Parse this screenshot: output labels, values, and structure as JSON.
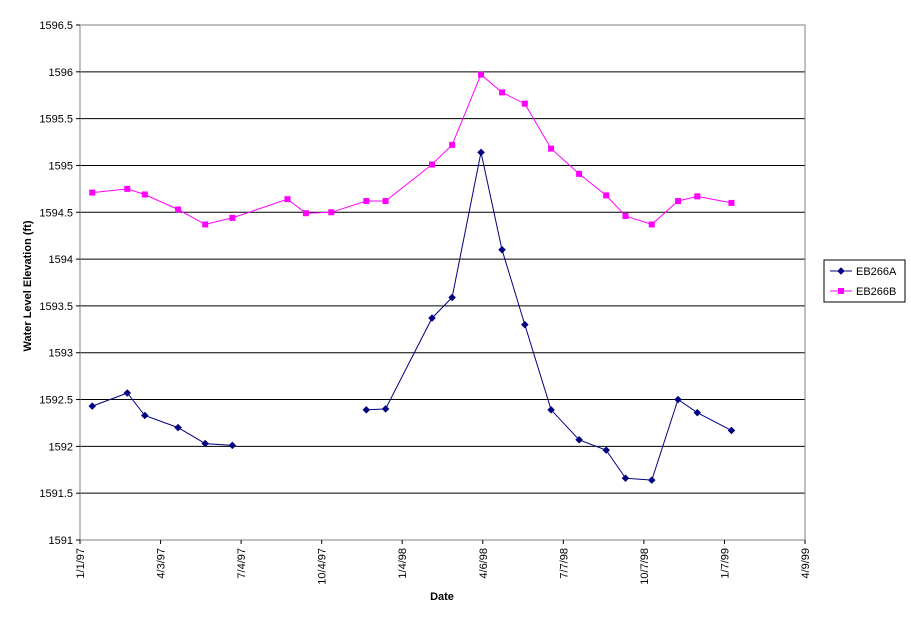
{
  "chart_data": {
    "type": "line",
    "title": "",
    "xlabel": "Date",
    "ylabel": "Water Level Elevation (ft)",
    "ylim": [
      1591,
      1596.5
    ],
    "y_ticks": [
      "1591",
      "1591.5",
      "1592",
      "1592.5",
      "1593",
      "1593.5",
      "1594",
      "1594.5",
      "1595",
      "1595.5",
      "1596",
      "1596.5"
    ],
    "xlim": [
      "1997-01-01",
      "1999-04-09"
    ],
    "x_ticks": [
      {
        "date": "1997-01-01",
        "label": "1/1/97"
      },
      {
        "date": "1997-04-03",
        "label": "4/3/97"
      },
      {
        "date": "1997-07-04",
        "label": "7/4/97"
      },
      {
        "date": "1997-10-04",
        "label": "10/4/97"
      },
      {
        "date": "1998-01-04",
        "label": "1/4/98"
      },
      {
        "date": "1998-04-06",
        "label": "4/6/98"
      },
      {
        "date": "1998-07-07",
        "label": "7/7/98"
      },
      {
        "date": "1998-10-07",
        "label": "10/7/98"
      },
      {
        "date": "1999-01-07",
        "label": "1/7/99"
      },
      {
        "date": "1999-04-09",
        "label": "4/9/99"
      }
    ],
    "grid": "horizontal",
    "legend_position": "right",
    "series": [
      {
        "name": "EB266A",
        "color": "#000080",
        "marker": "diamond",
        "segments": [
          [
            {
              "x": "1997-01-15",
              "y": 1592.43
            },
            {
              "x": "1997-02-24",
              "y": 1592.57
            },
            {
              "x": "1997-03-16",
              "y": 1592.33
            },
            {
              "x": "1997-04-23",
              "y": 1592.2
            },
            {
              "x": "1997-05-24",
              "y": 1592.03
            },
            {
              "x": "1997-06-24",
              "y": 1592.01
            }
          ],
          [
            {
              "x": "1997-11-24",
              "y": 1592.39
            },
            {
              "x": "1997-12-16",
              "y": 1592.4
            },
            {
              "x": "1998-02-07",
              "y": 1593.37
            },
            {
              "x": "1998-03-02",
              "y": 1593.59
            },
            {
              "x": "1998-04-04",
              "y": 1595.14
            },
            {
              "x": "1998-04-28",
              "y": 1594.1
            },
            {
              "x": "1998-05-24",
              "y": 1593.3
            },
            {
              "x": "1998-06-23",
              "y": 1592.39
            },
            {
              "x": "1998-07-25",
              "y": 1592.07
            },
            {
              "x": "1998-08-25",
              "y": 1591.96
            },
            {
              "x": "1998-09-16",
              "y": 1591.66
            },
            {
              "x": "1998-10-16",
              "y": 1591.64
            },
            {
              "x": "1998-11-15",
              "y": 1592.5
            },
            {
              "x": "1998-12-07",
              "y": 1592.36
            },
            {
              "x": "1999-01-15",
              "y": 1592.17
            }
          ]
        ]
      },
      {
        "name": "EB266B",
        "color": "#ff00ff",
        "marker": "square",
        "segments": [
          [
            {
              "x": "1997-01-15",
              "y": 1594.71
            },
            {
              "x": "1997-02-24",
              "y": 1594.75
            },
            {
              "x": "1997-03-16",
              "y": 1594.69
            },
            {
              "x": "1997-04-23",
              "y": 1594.53
            },
            {
              "x": "1997-05-24",
              "y": 1594.37
            },
            {
              "x": "1997-06-24",
              "y": 1594.44
            },
            {
              "x": "1997-08-26",
              "y": 1594.64
            },
            {
              "x": "1997-09-16",
              "y": 1594.49
            },
            {
              "x": "1997-10-15",
              "y": 1594.5
            },
            {
              "x": "1997-11-24",
              "y": 1594.62
            },
            {
              "x": "1997-12-16",
              "y": 1594.62
            },
            {
              "x": "1998-02-07",
              "y": 1595.01
            },
            {
              "x": "1998-03-02",
              "y": 1595.22
            },
            {
              "x": "1998-04-04",
              "y": 1595.97
            },
            {
              "x": "1998-04-28",
              "y": 1595.78
            },
            {
              "x": "1998-05-24",
              "y": 1595.66
            },
            {
              "x": "1998-06-23",
              "y": 1595.18
            },
            {
              "x": "1998-07-25",
              "y": 1594.91
            },
            {
              "x": "1998-08-25",
              "y": 1594.68
            },
            {
              "x": "1998-09-16",
              "y": 1594.46
            },
            {
              "x": "1998-10-16",
              "y": 1594.37
            },
            {
              "x": "1998-11-15",
              "y": 1594.62
            },
            {
              "x": "1998-12-07",
              "y": 1594.67
            },
            {
              "x": "1999-01-15",
              "y": 1594.6
            }
          ]
        ]
      }
    ]
  }
}
